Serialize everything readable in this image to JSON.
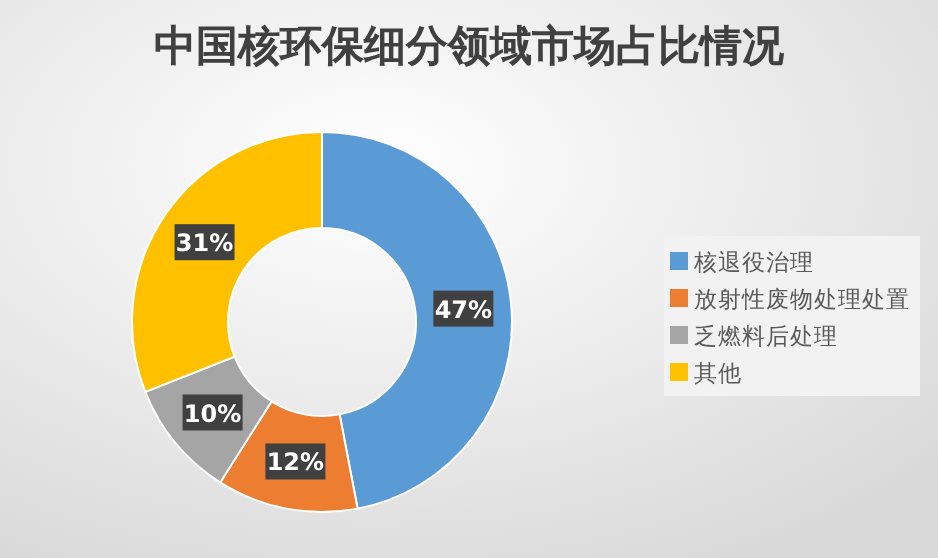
{
  "chart_data": {
    "type": "donut",
    "title": "中国核环保细分领域市场占比情况",
    "categories": [
      "核退役治理",
      "放射性废物处理处置",
      "乏燃料后处理",
      "其他"
    ],
    "values": [
      47,
      12,
      10,
      31
    ],
    "colors": [
      "#5b9bd5",
      "#ed7d31",
      "#a5a5a5",
      "#ffc000"
    ],
    "value_labels": [
      "47%",
      "12%",
      "10%",
      "31%"
    ],
    "legend": "right"
  }
}
